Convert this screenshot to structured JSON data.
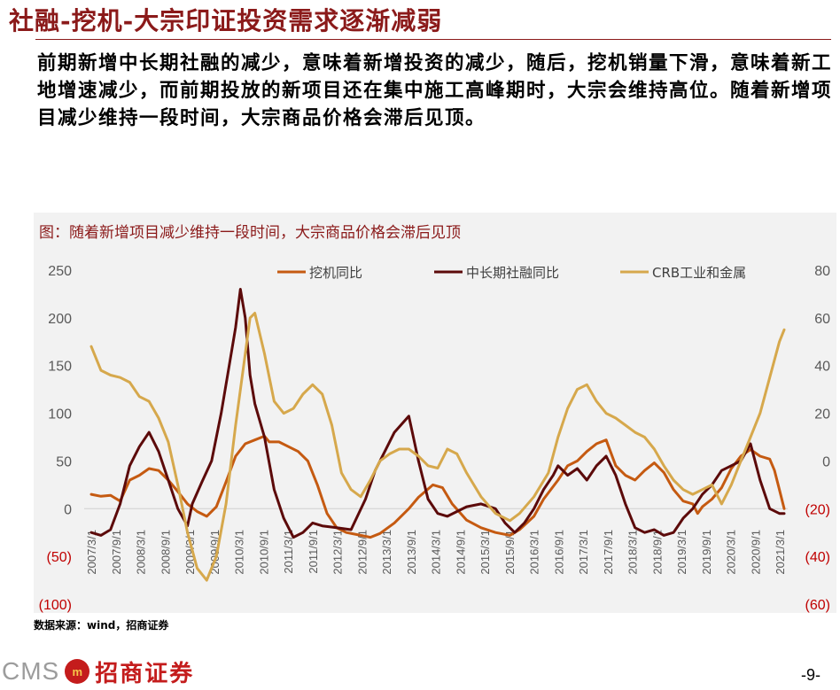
{
  "title": "社融-挖机-大宗印证投资需求逐渐减弱",
  "body": "前期新增中长期社融的减少，意味着新增投资的减少，随后，挖机销量下滑，意味着新工地增速减少，而前期投放的新项目还在集中施工高峰期时，大宗会维持高位。随着新增项目减少维持一段时间，大宗商品价格会滞后见顶。",
  "chart_caption": "图：随着新增项目减少维持一段时间，大宗商品价格会滞后见顶",
  "source": "数据来源：wind，招商证券",
  "logo": {
    "cms": "CMS",
    "mark": "m",
    "cn": "招商证券"
  },
  "page_number": "-9-",
  "colors": {
    "accent": "#8b1a1a",
    "excavator": "#c55a11",
    "social_financing": "#5c0a0a",
    "crb": "#d6a84c"
  },
  "chart_data": {
    "type": "line",
    "x_tick_labels": [
      "2007/3/1",
      "2007/9/1",
      "2008/3/1",
      "2008/9/1",
      "2009/3/1",
      "2009/9/1",
      "2010/3/1",
      "2010/9/1",
      "2011/3/1",
      "2011/9/1",
      "2012/3/1",
      "2012/9/1",
      "2013/3/1",
      "2013/9/1",
      "2014/3/1",
      "2014/9/1",
      "2015/3/1",
      "2015/9/1",
      "2016/3/1",
      "2016/9/1",
      "2017/3/1",
      "2017/9/1",
      "2018/3/1",
      "2018/9/1",
      "2019/3/1",
      "2019/9/1",
      "2020/3/1",
      "2020/9/1",
      "2021/3/1"
    ],
    "y_left": {
      "ticks": [
        "250",
        "200",
        "150",
        "100",
        "50",
        "0",
        "(50)",
        "(100)"
      ],
      "range": [
        -100,
        250
      ]
    },
    "y_right": {
      "ticks": [
        "80",
        "60",
        "40",
        "20",
        "0",
        "(20)",
        "(40)",
        "(60)"
      ],
      "range": [
        -60,
        80
      ]
    },
    "legend_position": "top",
    "series": [
      {
        "name": "挖机同比",
        "axis": "left",
        "color": "#c55a11",
        "points": [
          [
            2007.2,
            15
          ],
          [
            2007.4,
            13
          ],
          [
            2007.6,
            14
          ],
          [
            2007.8,
            8
          ],
          [
            2008.0,
            30
          ],
          [
            2008.2,
            35
          ],
          [
            2008.4,
            42
          ],
          [
            2008.6,
            40
          ],
          [
            2008.8,
            30
          ],
          [
            2009.0,
            18
          ],
          [
            2009.2,
            5
          ],
          [
            2009.4,
            -3
          ],
          [
            2009.6,
            -8
          ],
          [
            2009.8,
            2
          ],
          [
            2010.0,
            28
          ],
          [
            2010.2,
            55
          ],
          [
            2010.4,
            68
          ],
          [
            2010.6,
            72
          ],
          [
            2010.8,
            76
          ],
          [
            2010.9,
            70
          ],
          [
            2011.1,
            70
          ],
          [
            2011.3,
            65
          ],
          [
            2011.5,
            60
          ],
          [
            2011.7,
            50
          ],
          [
            2011.9,
            25
          ],
          [
            2012.1,
            -5
          ],
          [
            2012.3,
            -20
          ],
          [
            2012.5,
            -25
          ],
          [
            2012.8,
            -28
          ],
          [
            2013.0,
            -30
          ],
          [
            2013.2,
            -26
          ],
          [
            2013.5,
            -15
          ],
          [
            2013.8,
            0
          ],
          [
            2014.0,
            12
          ],
          [
            2014.3,
            25
          ],
          [
            2014.5,
            22
          ],
          [
            2014.7,
            5
          ],
          [
            2015.0,
            -12
          ],
          [
            2015.3,
            -20
          ],
          [
            2015.6,
            -25
          ],
          [
            2015.9,
            -28
          ],
          [
            2016.1,
            -22
          ],
          [
            2016.4,
            -8
          ],
          [
            2016.6,
            10
          ],
          [
            2016.9,
            30
          ],
          [
            2017.1,
            45
          ],
          [
            2017.3,
            50
          ],
          [
            2017.5,
            60
          ],
          [
            2017.7,
            68
          ],
          [
            2017.9,
            72
          ],
          [
            2018.1,
            45
          ],
          [
            2018.3,
            35
          ],
          [
            2018.5,
            30
          ],
          [
            2018.7,
            40
          ],
          [
            2018.9,
            48
          ],
          [
            2019.1,
            38
          ],
          [
            2019.3,
            20
          ],
          [
            2019.5,
            8
          ],
          [
            2019.7,
            5
          ],
          [
            2019.8,
            -5
          ],
          [
            2019.9,
            2
          ],
          [
            2020.1,
            10
          ],
          [
            2020.3,
            22
          ],
          [
            2020.5,
            42
          ],
          [
            2020.7,
            55
          ],
          [
            2020.9,
            62
          ],
          [
            2021.1,
            55
          ],
          [
            2021.3,
            52
          ],
          [
            2021.4,
            40
          ],
          [
            2021.5,
            20
          ],
          [
            2021.6,
            0
          ]
        ]
      },
      {
        "name": "中长期社融同比",
        "axis": "left",
        "color": "#5c0a0a",
        "points": [
          [
            2007.2,
            -25
          ],
          [
            2007.4,
            -28
          ],
          [
            2007.6,
            -22
          ],
          [
            2007.8,
            5
          ],
          [
            2008.0,
            45
          ],
          [
            2008.2,
            65
          ],
          [
            2008.4,
            80
          ],
          [
            2008.6,
            60
          ],
          [
            2008.8,
            30
          ],
          [
            2009.0,
            0
          ],
          [
            2009.2,
            -18
          ],
          [
            2009.3,
            5
          ],
          [
            2009.5,
            28
          ],
          [
            2009.7,
            50
          ],
          [
            2009.9,
            100
          ],
          [
            2010.1,
            160
          ],
          [
            2010.2,
            190
          ],
          [
            2010.3,
            230
          ],
          [
            2010.4,
            200
          ],
          [
            2010.5,
            140
          ],
          [
            2010.6,
            110
          ],
          [
            2010.8,
            75
          ],
          [
            2011.0,
            20
          ],
          [
            2011.2,
            -10
          ],
          [
            2011.4,
            -30
          ],
          [
            2011.6,
            -25
          ],
          [
            2011.8,
            -15
          ],
          [
            2012.0,
            -18
          ],
          [
            2012.3,
            -20
          ],
          [
            2012.6,
            -22
          ],
          [
            2012.9,
            10
          ],
          [
            2013.1,
            40
          ],
          [
            2013.3,
            60
          ],
          [
            2013.5,
            80
          ],
          [
            2013.8,
            97
          ],
          [
            2014.0,
            50
          ],
          [
            2014.2,
            10
          ],
          [
            2014.4,
            -5
          ],
          [
            2014.6,
            -8
          ],
          [
            2014.8,
            -3
          ],
          [
            2015.0,
            2
          ],
          [
            2015.3,
            5
          ],
          [
            2015.6,
            0
          ],
          [
            2015.8,
            -15
          ],
          [
            2016.0,
            -25
          ],
          [
            2016.2,
            -15
          ],
          [
            2016.4,
            0
          ],
          [
            2016.6,
            20
          ],
          [
            2016.8,
            35
          ],
          [
            2016.9,
            45
          ],
          [
            2017.1,
            35
          ],
          [
            2017.3,
            42
          ],
          [
            2017.5,
            30
          ],
          [
            2017.7,
            45
          ],
          [
            2017.9,
            55
          ],
          [
            2018.1,
            35
          ],
          [
            2018.3,
            5
          ],
          [
            2018.5,
            -20
          ],
          [
            2018.7,
            -25
          ],
          [
            2018.9,
            -22
          ],
          [
            2019.1,
            -28
          ],
          [
            2019.3,
            -25
          ],
          [
            2019.5,
            -10
          ],
          [
            2019.7,
            0
          ],
          [
            2019.9,
            15
          ],
          [
            2020.1,
            25
          ],
          [
            2020.3,
            40
          ],
          [
            2020.5,
            45
          ],
          [
            2020.7,
            50
          ],
          [
            2020.9,
            68
          ],
          [
            2021.1,
            30
          ],
          [
            2021.3,
            0
          ],
          [
            2021.5,
            -5
          ],
          [
            2021.6,
            -5
          ]
        ]
      },
      {
        "name": "CRB工业和金属",
        "axis": "right",
        "color": "#d6a84c",
        "points": [
          [
            2007.2,
            48
          ],
          [
            2007.4,
            38
          ],
          [
            2007.6,
            36
          ],
          [
            2007.8,
            35
          ],
          [
            2008.0,
            33
          ],
          [
            2008.2,
            27
          ],
          [
            2008.4,
            25
          ],
          [
            2008.6,
            18
          ],
          [
            2008.8,
            8
          ],
          [
            2009.0,
            -10
          ],
          [
            2009.2,
            -30
          ],
          [
            2009.4,
            -45
          ],
          [
            2009.6,
            -50
          ],
          [
            2009.8,
            -40
          ],
          [
            2010.0,
            -18
          ],
          [
            2010.2,
            15
          ],
          [
            2010.4,
            45
          ],
          [
            2010.5,
            60
          ],
          [
            2010.6,
            62
          ],
          [
            2010.8,
            45
          ],
          [
            2011.0,
            25
          ],
          [
            2011.2,
            20
          ],
          [
            2011.4,
            22
          ],
          [
            2011.6,
            28
          ],
          [
            2011.8,
            32
          ],
          [
            2012.0,
            28
          ],
          [
            2012.2,
            15
          ],
          [
            2012.4,
            -5
          ],
          [
            2012.6,
            -12
          ],
          [
            2012.8,
            -15
          ],
          [
            2013.0,
            -8
          ],
          [
            2013.2,
            0
          ],
          [
            2013.4,
            3
          ],
          [
            2013.6,
            5
          ],
          [
            2013.8,
            5
          ],
          [
            2014.0,
            2
          ],
          [
            2014.2,
            -2
          ],
          [
            2014.4,
            -3
          ],
          [
            2014.6,
            5
          ],
          [
            2014.8,
            3
          ],
          [
            2015.0,
            -5
          ],
          [
            2015.3,
            -15
          ],
          [
            2015.6,
            -22
          ],
          [
            2015.9,
            -25
          ],
          [
            2016.1,
            -22
          ],
          [
            2016.4,
            -15
          ],
          [
            2016.7,
            -5
          ],
          [
            2016.9,
            10
          ],
          [
            2017.1,
            22
          ],
          [
            2017.3,
            30
          ],
          [
            2017.5,
            32
          ],
          [
            2017.7,
            25
          ],
          [
            2017.9,
            20
          ],
          [
            2018.1,
            18
          ],
          [
            2018.3,
            15
          ],
          [
            2018.5,
            12
          ],
          [
            2018.7,
            10
          ],
          [
            2018.9,
            5
          ],
          [
            2019.1,
            -2
          ],
          [
            2019.3,
            -8
          ],
          [
            2019.5,
            -12
          ],
          [
            2019.7,
            -14
          ],
          [
            2019.9,
            -12
          ],
          [
            2020.1,
            -10
          ],
          [
            2020.3,
            -18
          ],
          [
            2020.5,
            -10
          ],
          [
            2020.7,
            0
          ],
          [
            2020.9,
            10
          ],
          [
            2021.1,
            20
          ],
          [
            2021.3,
            35
          ],
          [
            2021.5,
            50
          ],
          [
            2021.6,
            55
          ]
        ]
      }
    ]
  }
}
